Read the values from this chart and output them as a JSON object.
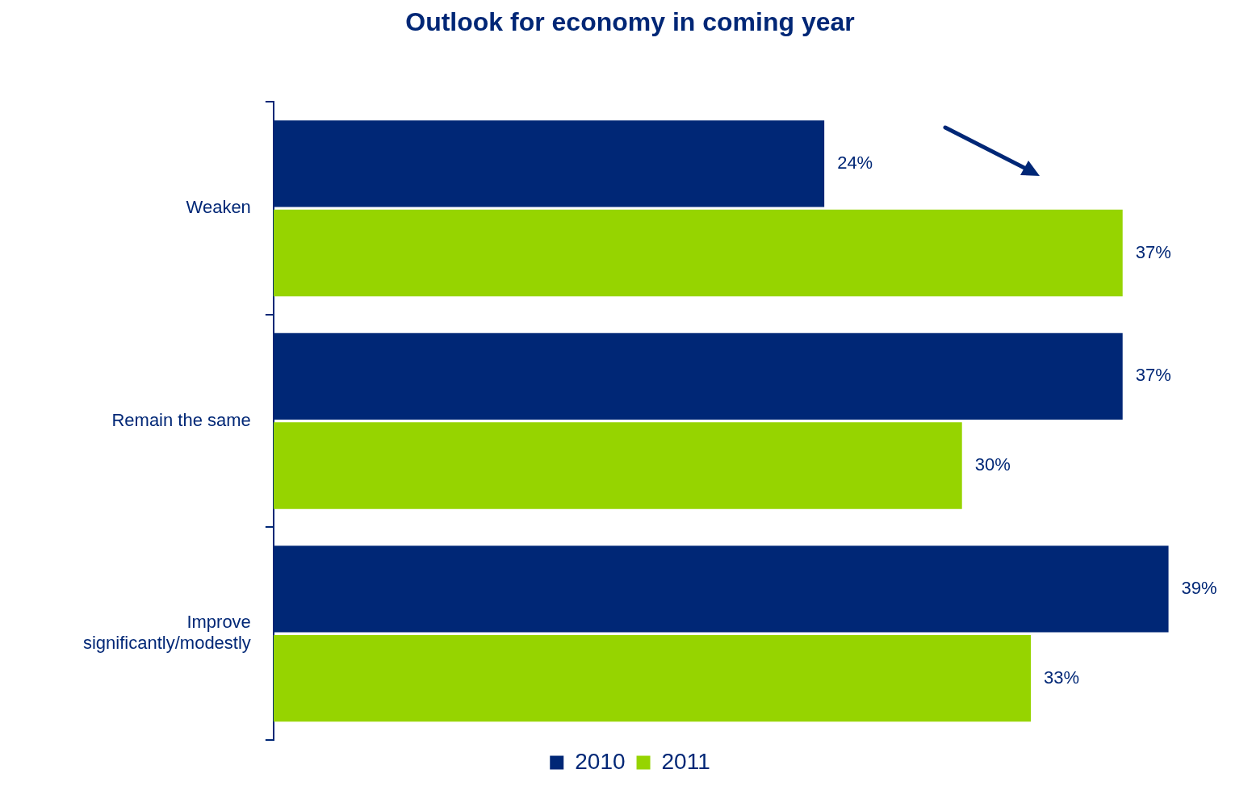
{
  "chart_data": {
    "type": "bar",
    "orientation": "horizontal",
    "title": "Outlook for economy in coming year",
    "categories": [
      "Weaken",
      "Remain the same",
      "Improve significantly/modestly"
    ],
    "series": [
      {
        "name": "2010",
        "color": "#002776",
        "values": [
          24,
          37,
          39
        ],
        "value_labels": [
          "24%",
          "37%",
          "39%"
        ]
      },
      {
        "name": "2011",
        "color": "#96d400",
        "values": [
          37,
          30,
          33
        ],
        "value_labels": [
          "37%",
          "30%",
          "33%"
        ]
      }
    ],
    "legend": "bottom"
  }
}
